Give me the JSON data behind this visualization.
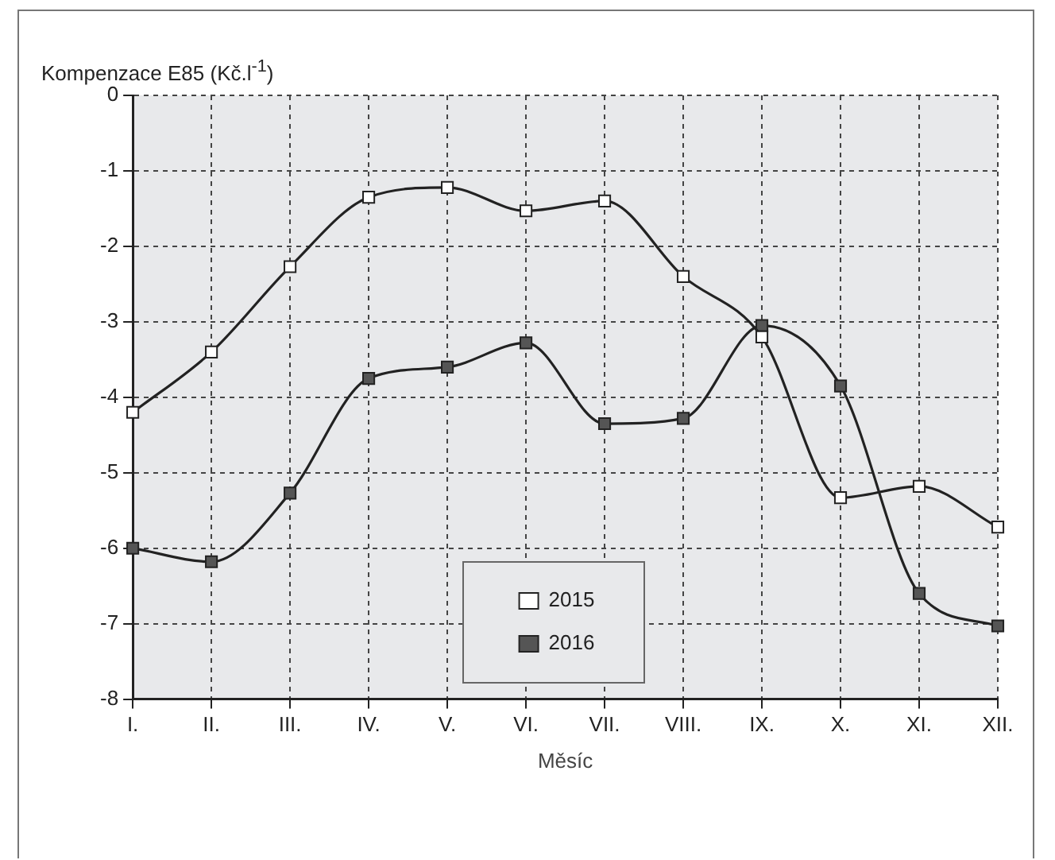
{
  "chart_data": {
    "type": "line",
    "ylabel": "Kompenzace E85 (Kč.l$^{-1}$)",
    "xlabel": "Měsíc",
    "categories": [
      "I.",
      "II.",
      "III.",
      "IV.",
      "V.",
      "VI.",
      "VII.",
      "VIII.",
      "IX.",
      "X.",
      "XI.",
      "XII."
    ],
    "series": [
      {
        "name": "2015",
        "color": "#ffffff",
        "values": [
          -4.2,
          -3.4,
          -2.27,
          -1.35,
          -1.22,
          -1.53,
          -1.4,
          -2.4,
          -3.2,
          -5.33,
          -5.18,
          -5.72
        ]
      },
      {
        "name": "2016",
        "color": "#555555",
        "values": [
          -6.0,
          -6.18,
          -5.27,
          -3.75,
          -3.6,
          -3.28,
          -4.35,
          -4.28,
          -3.05,
          -3.85,
          -6.6,
          -7.03
        ]
      }
    ],
    "ylim": [
      -8,
      0
    ],
    "yticks": [
      -8,
      -7,
      -6,
      -5,
      -4,
      -3,
      -2,
      -1,
      0
    ],
    "grid": true,
    "legend": "bottom",
    "marker": "square",
    "line_style": "solid"
  }
}
